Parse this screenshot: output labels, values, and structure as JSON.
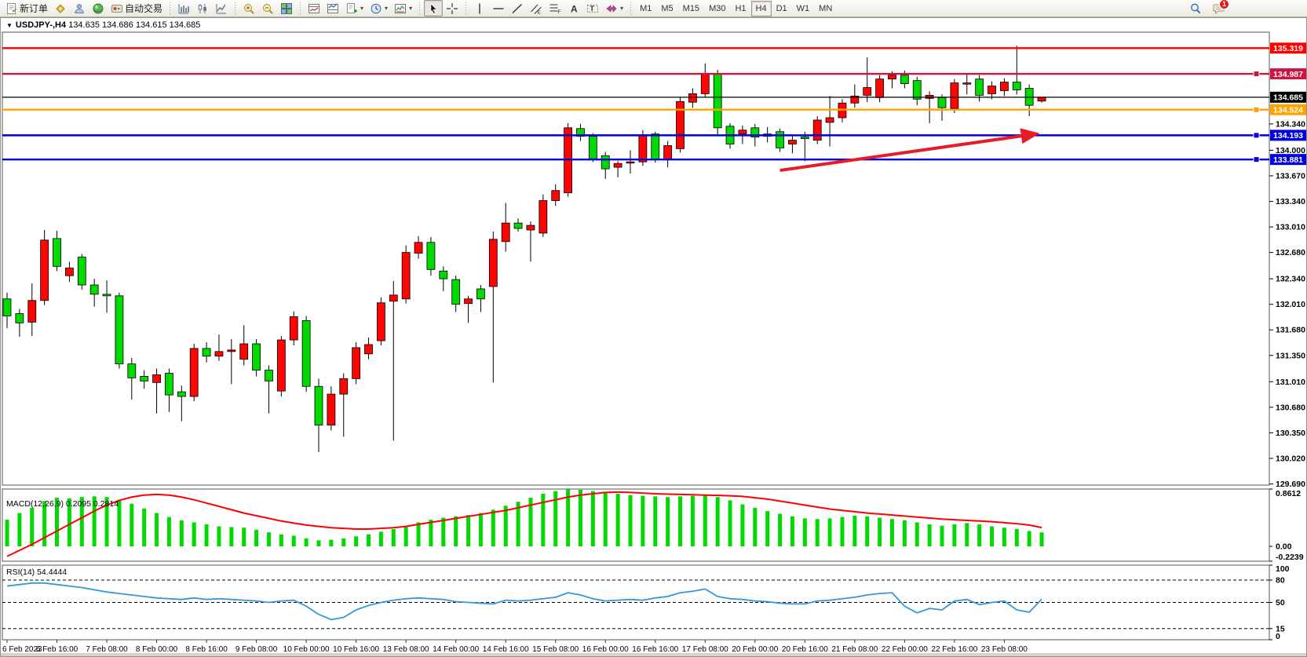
{
  "toolbar": {
    "dropdown_glyph": "▾",
    "items": [
      {
        "name": "new-order-button",
        "icon": "neworder",
        "label": "新订单"
      },
      {
        "name": "chart-wizard-button",
        "icon": "wizard"
      },
      {
        "name": "profiles-button",
        "icon": "profiles"
      },
      {
        "name": "data-feed-button",
        "icon": "orb"
      },
      {
        "name": "auto-trading-button",
        "icon": "autotrade",
        "label": "自动交易"
      },
      {
        "type": "sep"
      },
      {
        "name": "bar-chart-mode-button",
        "icon": "bars"
      },
      {
        "name": "candlestick-mode-button",
        "icon": "candles"
      },
      {
        "name": "line-chart-mode-button",
        "icon": "linechart"
      },
      {
        "type": "sep"
      },
      {
        "name": "zoom-in-button",
        "icon": "zoomin"
      },
      {
        "name": "zoom-out-button",
        "icon": "zoomout"
      },
      {
        "name": "tile-windows-button",
        "icon": "tiles"
      },
      {
        "type": "sep"
      },
      {
        "name": "indicator-window-button",
        "icon": "indwin"
      },
      {
        "name": "indicator-window-2-button",
        "icon": "indwin2"
      },
      {
        "name": "templates-button",
        "icon": "template",
        "dropdown": true
      },
      {
        "name": "periods-button",
        "icon": "clock",
        "dropdown": true
      },
      {
        "name": "chart-profile-button",
        "icon": "chartshot",
        "dropdown": true
      },
      {
        "type": "sep"
      },
      {
        "name": "cursor-button",
        "icon": "cursor",
        "active": true
      },
      {
        "name": "crosshair-button",
        "icon": "crosshair"
      },
      {
        "type": "sep"
      },
      {
        "name": "vertical-line-button",
        "icon": "vline"
      },
      {
        "name": "horizontal-line-button",
        "icon": "hline"
      },
      {
        "name": "trendline-button",
        "icon": "trend"
      },
      {
        "name": "equidistant-channel-button",
        "icon": "channel"
      },
      {
        "name": "fibonacci-button",
        "icon": "fibo"
      },
      {
        "name": "text-button",
        "icon": "text"
      },
      {
        "name": "text-label-button",
        "icon": "label"
      },
      {
        "name": "arrows-button",
        "icon": "shapes",
        "dropdown": true
      },
      {
        "type": "sep"
      }
    ],
    "timeframes": [
      "M1",
      "M5",
      "M15",
      "M30",
      "H1",
      "H4",
      "D1",
      "W1",
      "MN"
    ],
    "active_timeframe": "H4",
    "right_items": [
      {
        "name": "search-button",
        "icon": "search"
      },
      {
        "name": "notifications-button",
        "icon": "chat",
        "badge": "1"
      }
    ]
  },
  "chart": {
    "title_arrow": "▼",
    "symbol_period": "USDJPY-,H4",
    "ohlc_text": "134.635 134.686 134.615 134.685"
  },
  "chart_data": {
    "type": "candlestick",
    "title": "USDJPY-,H4",
    "ohlc_display": "134.635 134.686 134.615 134.685",
    "label_every": 4,
    "x_labels": [
      "6 Feb 2023",
      "6 Feb 16:00",
      "7 Feb 08:00",
      "8 Feb 00:00",
      "8 Feb 16:00",
      "9 Feb 08:00",
      "10 Feb 00:00",
      "10 Feb 16:00",
      "13 Feb 08:00",
      "14 Feb 00:00",
      "14 Feb 16:00",
      "15 Feb 08:00",
      "16 Feb 00:00",
      "16 Feb 16:00",
      "17 Feb 08:00",
      "20 Feb 00:00",
      "20 Feb 16:00",
      "21 Feb 08:00",
      "22 Feb 00:00",
      "22 Feb 16:00",
      "23 Feb 08:00"
    ],
    "ylim": [
      129.675,
      135.525
    ],
    "y_ticks": [
      "134.340",
      "134.000",
      "133.670",
      "133.340",
      "133.010",
      "132.680",
      "132.340",
      "132.010",
      "131.680",
      "131.350",
      "131.010",
      "130.680",
      "130.350",
      "130.020",
      "129.690"
    ],
    "candle_up_color": "#ff0400",
    "candle_down_color": "#00da00",
    "candles": [
      [
        132.08,
        132.16,
        131.7,
        131.86
      ],
      [
        131.89,
        131.95,
        131.59,
        131.77
      ],
      [
        131.78,
        132.28,
        131.6,
        132.06
      ],
      [
        132.06,
        132.97,
        132.0,
        132.84
      ],
      [
        132.86,
        132.96,
        132.44,
        132.5
      ],
      [
        132.38,
        132.56,
        132.3,
        132.48
      ],
      [
        132.62,
        132.66,
        132.2,
        132.26
      ],
      [
        132.26,
        132.34,
        131.98,
        132.14
      ],
      [
        132.14,
        132.32,
        131.9,
        132.12
      ],
      [
        132.12,
        132.16,
        131.18,
        131.24
      ],
      [
        131.24,
        131.32,
        130.78,
        131.06
      ],
      [
        131.08,
        131.16,
        130.92,
        131.02
      ],
      [
        131.0,
        131.18,
        130.6,
        131.1
      ],
      [
        131.12,
        131.18,
        130.62,
        130.84
      ],
      [
        130.88,
        130.96,
        130.5,
        130.82
      ],
      [
        130.82,
        131.5,
        130.76,
        131.44
      ],
      [
        131.44,
        131.52,
        131.26,
        131.34
      ],
      [
        131.34,
        131.62,
        131.28,
        131.4
      ],
      [
        131.4,
        131.56,
        130.98,
        131.42
      ],
      [
        131.3,
        131.74,
        131.22,
        131.5
      ],
      [
        131.5,
        131.56,
        131.08,
        131.16
      ],
      [
        131.16,
        131.22,
        130.6,
        131.02
      ],
      [
        130.89,
        131.6,
        130.82,
        131.55
      ],
      [
        131.55,
        131.92,
        131.48,
        131.85
      ],
      [
        131.8,
        131.86,
        130.88,
        130.95
      ],
      [
        130.95,
        131.05,
        130.1,
        130.45
      ],
      [
        130.45,
        130.95,
        130.38,
        130.85
      ],
      [
        130.85,
        131.12,
        130.3,
        131.05
      ],
      [
        131.05,
        131.52,
        130.98,
        131.45
      ],
      [
        131.37,
        131.58,
        131.3,
        131.49
      ],
      [
        131.54,
        132.1,
        131.48,
        132.03
      ],
      [
        132.05,
        132.31,
        130.25,
        132.13
      ],
      [
        132.08,
        132.77,
        132.02,
        132.68
      ],
      [
        132.67,
        132.89,
        132.6,
        132.81
      ],
      [
        132.81,
        132.88,
        132.38,
        132.46
      ],
      [
        132.44,
        132.5,
        132.18,
        132.34
      ],
      [
        132.33,
        132.38,
        131.91,
        132.01
      ],
      [
        132.02,
        132.12,
        131.77,
        132.08
      ],
      [
        132.21,
        132.26,
        131.91,
        132.08
      ],
      [
        132.24,
        132.95,
        131.0,
        132.85
      ],
      [
        132.82,
        133.32,
        132.69,
        133.06
      ],
      [
        133.06,
        133.12,
        132.95,
        132.99
      ],
      [
        132.97,
        133.08,
        132.56,
        133.03
      ],
      [
        132.93,
        133.43,
        132.88,
        133.35
      ],
      [
        133.35,
        133.56,
        133.28,
        133.48
      ],
      [
        133.45,
        134.35,
        133.4,
        134.29
      ],
      [
        134.28,
        134.34,
        134.12,
        134.18
      ],
      [
        134.18,
        134.22,
        133.85,
        133.89
      ],
      [
        133.93,
        133.98,
        133.63,
        133.76
      ],
      [
        133.78,
        133.86,
        133.65,
        133.83
      ],
      [
        133.84,
        134.0,
        133.7,
        133.85
      ],
      [
        133.85,
        134.26,
        133.8,
        134.2
      ],
      [
        134.21,
        134.24,
        133.84,
        133.88
      ],
      [
        133.88,
        134.12,
        133.78,
        134.06
      ],
      [
        134.02,
        134.68,
        133.97,
        134.63
      ],
      [
        134.62,
        134.8,
        134.55,
        134.73
      ],
      [
        134.73,
        135.12,
        134.68,
        134.99
      ],
      [
        134.99,
        135.04,
        134.18,
        134.29
      ],
      [
        134.31,
        134.35,
        134.02,
        134.08
      ],
      [
        134.21,
        134.32,
        134.08,
        134.26
      ],
      [
        134.29,
        134.34,
        134.05,
        134.17
      ],
      [
        134.21,
        134.3,
        134.1,
        134.18
      ],
      [
        134.24,
        134.28,
        133.98,
        134.03
      ],
      [
        134.08,
        134.18,
        133.96,
        134.13
      ],
      [
        134.17,
        134.24,
        133.86,
        134.15
      ],
      [
        134.13,
        134.44,
        134.08,
        134.39
      ],
      [
        134.36,
        134.7,
        134.05,
        134.42
      ],
      [
        134.42,
        134.66,
        134.36,
        134.61
      ],
      [
        134.61,
        134.85,
        134.55,
        134.7
      ],
      [
        134.71,
        135.2,
        134.62,
        134.81
      ],
      [
        134.68,
        134.97,
        134.62,
        134.92
      ],
      [
        134.92,
        135.02,
        134.8,
        134.97
      ],
      [
        134.97,
        135.03,
        134.8,
        134.86
      ],
      [
        134.9,
        134.95,
        134.58,
        134.66
      ],
      [
        134.67,
        134.76,
        134.35,
        134.71
      ],
      [
        134.68,
        134.72,
        134.38,
        134.55
      ],
      [
        134.54,
        134.92,
        134.48,
        134.87
      ],
      [
        134.86,
        134.98,
        134.72,
        134.87
      ],
      [
        134.92,
        134.97,
        134.63,
        134.71
      ],
      [
        134.73,
        134.89,
        134.66,
        134.83
      ],
      [
        134.77,
        134.93,
        134.7,
        134.88
      ],
      [
        134.88,
        135.35,
        134.72,
        134.78
      ],
      [
        134.8,
        134.85,
        134.44,
        134.58
      ],
      [
        134.635,
        134.686,
        134.615,
        134.685
      ]
    ],
    "price_lines": [
      {
        "price": 135.319,
        "label": "135.319",
        "color": "#fe0000",
        "handle": false
      },
      {
        "price": 134.987,
        "label": "134.987",
        "color": "#cf1342",
        "handle": true
      },
      {
        "price": 134.685,
        "label": "134.685",
        "color": "#000000",
        "handle": false,
        "current": true
      },
      {
        "price": 134.524,
        "label": "134.524",
        "color": "#ffa200",
        "handle": true
      },
      {
        "price": 134.193,
        "label": "134.193",
        "color": "#0000dc",
        "handle": true
      },
      {
        "price": 133.881,
        "label": "133.881",
        "color": "#0000dc",
        "handle": true
      }
    ],
    "macd": {
      "label": "MACD(12,26,9) 0.2095 0.2814",
      "vmax": 0.8612,
      "vmin": -0.2239,
      "scale_labels": [
        "0.8612",
        "0.00",
        "-0.2239"
      ],
      "hist_color": "#00da00",
      "signal_color": "#fe0000",
      "histogram": [
        0.4,
        0.5,
        0.58,
        0.68,
        0.73,
        0.72,
        0.74,
        0.75,
        0.74,
        0.7,
        0.64,
        0.57,
        0.5,
        0.44,
        0.39,
        0.36,
        0.33,
        0.3,
        0.29,
        0.28,
        0.25,
        0.21,
        0.18,
        0.16,
        0.12,
        0.09,
        0.1,
        0.12,
        0.15,
        0.18,
        0.22,
        0.26,
        0.31,
        0.36,
        0.4,
        0.43,
        0.45,
        0.47,
        0.5,
        0.55,
        0.61,
        0.67,
        0.73,
        0.79,
        0.83,
        0.86,
        0.85,
        0.83,
        0.81,
        0.79,
        0.77,
        0.76,
        0.75,
        0.74,
        0.75,
        0.76,
        0.77,
        0.74,
        0.69,
        0.63,
        0.58,
        0.53,
        0.49,
        0.45,
        0.42,
        0.41,
        0.42,
        0.44,
        0.46,
        0.45,
        0.43,
        0.41,
        0.39,
        0.36,
        0.33,
        0.31,
        0.33,
        0.35,
        0.33,
        0.3,
        0.28,
        0.26,
        0.23,
        0.21
      ],
      "signal": [
        -0.15,
        -0.06,
        0.03,
        0.13,
        0.23,
        0.33,
        0.43,
        0.53,
        0.62,
        0.69,
        0.74,
        0.77,
        0.78,
        0.77,
        0.74,
        0.7,
        0.65,
        0.6,
        0.55,
        0.5,
        0.46,
        0.42,
        0.38,
        0.35,
        0.32,
        0.3,
        0.28,
        0.27,
        0.26,
        0.26,
        0.27,
        0.28,
        0.3,
        0.33,
        0.36,
        0.39,
        0.42,
        0.45,
        0.48,
        0.51,
        0.54,
        0.58,
        0.62,
        0.66,
        0.7,
        0.74,
        0.77,
        0.79,
        0.81,
        0.815,
        0.81,
        0.8,
        0.79,
        0.785,
        0.78,
        0.775,
        0.77,
        0.765,
        0.76,
        0.75,
        0.73,
        0.71,
        0.68,
        0.65,
        0.62,
        0.59,
        0.56,
        0.54,
        0.52,
        0.5,
        0.485,
        0.47,
        0.455,
        0.44,
        0.425,
        0.41,
        0.4,
        0.39,
        0.38,
        0.37,
        0.355,
        0.34,
        0.32,
        0.2814
      ]
    },
    "rsi": {
      "label": "RSI(14) 54.4444",
      "levels": [
        80,
        50,
        15
      ],
      "scale_labels": [
        "100",
        "80",
        "50",
        "15",
        "0"
      ],
      "color": "#3496dc",
      "values": [
        72,
        74,
        76,
        76,
        74,
        72,
        70,
        67,
        64,
        62,
        60,
        58,
        56,
        55,
        54,
        56,
        54,
        55,
        54,
        53,
        52,
        50,
        52,
        53,
        45,
        34,
        27,
        30,
        40,
        46,
        50,
        53,
        55,
        56,
        55,
        54,
        51,
        50,
        49,
        48,
        53,
        52,
        53,
        55,
        57,
        63,
        60,
        55,
        52,
        53,
        54,
        53,
        56,
        58,
        63,
        65,
        68,
        58,
        55,
        54,
        52,
        51,
        49,
        48,
        48,
        52,
        53,
        55,
        57,
        60,
        62,
        63,
        45,
        36,
        42,
        40,
        52,
        54,
        47,
        50,
        52,
        40,
        37,
        54.4
      ]
    },
    "arrow": {
      "from_index": 62,
      "from_price": 133.74,
      "to_index": 82.5,
      "to_price": 134.21,
      "color": "#e81a28"
    }
  }
}
